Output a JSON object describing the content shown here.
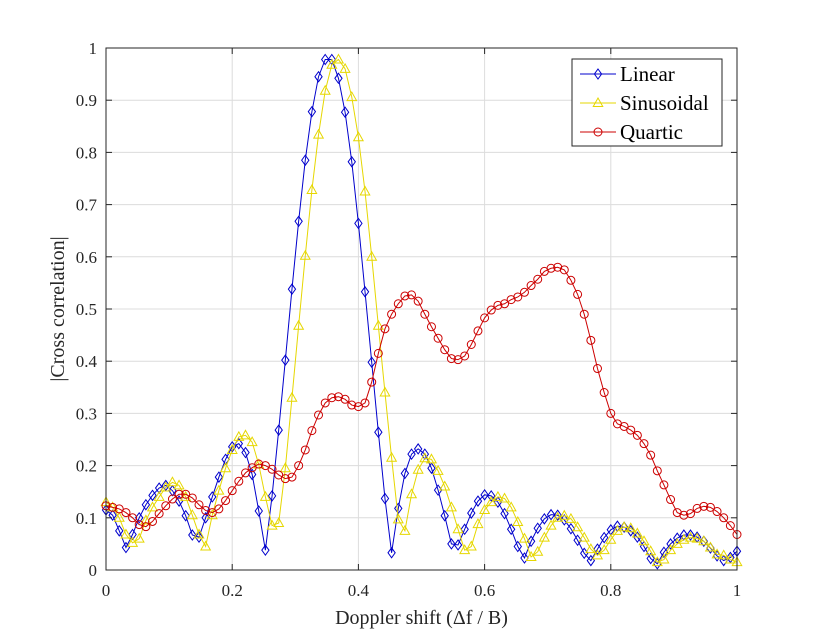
{
  "chart_data": {
    "type": "line",
    "xlabel": "Doppler shift (Δf / B)",
    "ylabel": "|Cross correlation|",
    "xlim": [
      0,
      1
    ],
    "ylim": [
      0,
      1
    ],
    "x_ticks": [
      "0",
      "0.2",
      "0.4",
      "0.6",
      "0.8",
      "1"
    ],
    "y_ticks": [
      "0",
      "0.1",
      "0.2",
      "0.3",
      "0.4",
      "0.5",
      "0.6",
      "0.7",
      "0.8",
      "0.9",
      "1"
    ],
    "grid": true,
    "legend_position": "top-right",
    "series": [
      {
        "name": "Linear",
        "color": "#0000CC",
        "marker": "diamond",
        "points": [
          [
            0.0,
            0.115
          ],
          [
            0.0105,
            0.105
          ],
          [
            0.021,
            0.075
          ],
          [
            0.0316,
            0.043
          ],
          [
            0.0421,
            0.068
          ],
          [
            0.0526,
            0.1
          ],
          [
            0.0632,
            0.125
          ],
          [
            0.0737,
            0.143
          ],
          [
            0.0842,
            0.157
          ],
          [
            0.0947,
            0.162
          ],
          [
            0.1053,
            0.152
          ],
          [
            0.1158,
            0.132
          ],
          [
            0.1263,
            0.104
          ],
          [
            0.1368,
            0.067
          ],
          [
            0.1474,
            0.063
          ],
          [
            0.1579,
            0.1
          ],
          [
            0.1684,
            0.14
          ],
          [
            0.1789,
            0.178
          ],
          [
            0.1895,
            0.212
          ],
          [
            0.2,
            0.236
          ],
          [
            0.2105,
            0.242
          ],
          [
            0.2211,
            0.225
          ],
          [
            0.2316,
            0.183
          ],
          [
            0.2421,
            0.113
          ],
          [
            0.2526,
            0.038
          ],
          [
            0.2632,
            0.142
          ],
          [
            0.2737,
            0.268
          ],
          [
            0.2842,
            0.402
          ],
          [
            0.2947,
            0.538
          ],
          [
            0.3053,
            0.668
          ],
          [
            0.3158,
            0.785
          ],
          [
            0.3263,
            0.878
          ],
          [
            0.3368,
            0.945
          ],
          [
            0.3474,
            0.978
          ],
          [
            0.3579,
            0.978
          ],
          [
            0.3684,
            0.942
          ],
          [
            0.3789,
            0.877
          ],
          [
            0.3895,
            0.782
          ],
          [
            0.4,
            0.664
          ],
          [
            0.4105,
            0.533
          ],
          [
            0.4211,
            0.398
          ],
          [
            0.4316,
            0.264
          ],
          [
            0.4421,
            0.137
          ],
          [
            0.4526,
            0.033
          ],
          [
            0.4632,
            0.118
          ],
          [
            0.4737,
            0.185
          ],
          [
            0.4842,
            0.222
          ],
          [
            0.4947,
            0.232
          ],
          [
            0.5053,
            0.222
          ],
          [
            0.5158,
            0.195
          ],
          [
            0.5263,
            0.153
          ],
          [
            0.5368,
            0.104
          ],
          [
            0.5474,
            0.05
          ],
          [
            0.5579,
            0.048
          ],
          [
            0.5684,
            0.078
          ],
          [
            0.5789,
            0.109
          ],
          [
            0.5895,
            0.132
          ],
          [
            0.6,
            0.144
          ],
          [
            0.6105,
            0.142
          ],
          [
            0.6211,
            0.13
          ],
          [
            0.6316,
            0.108
          ],
          [
            0.6421,
            0.078
          ],
          [
            0.6526,
            0.045
          ],
          [
            0.6632,
            0.023
          ],
          [
            0.6737,
            0.055
          ],
          [
            0.6842,
            0.08
          ],
          [
            0.6947,
            0.098
          ],
          [
            0.7053,
            0.106
          ],
          [
            0.7158,
            0.105
          ],
          [
            0.7263,
            0.096
          ],
          [
            0.7368,
            0.079
          ],
          [
            0.7474,
            0.057
          ],
          [
            0.7579,
            0.032
          ],
          [
            0.7684,
            0.018
          ],
          [
            0.7789,
            0.04
          ],
          [
            0.7895,
            0.062
          ],
          [
            0.8,
            0.077
          ],
          [
            0.8105,
            0.084
          ],
          [
            0.8211,
            0.082
          ],
          [
            0.8316,
            0.075
          ],
          [
            0.8421,
            0.063
          ],
          [
            0.8526,
            0.045
          ],
          [
            0.8632,
            0.022
          ],
          [
            0.8737,
            0.012
          ],
          [
            0.8842,
            0.034
          ],
          [
            0.8947,
            0.05
          ],
          [
            0.9053,
            0.061
          ],
          [
            0.9158,
            0.067
          ],
          [
            0.9263,
            0.067
          ],
          [
            0.9368,
            0.063
          ],
          [
            0.9474,
            0.055
          ],
          [
            0.9579,
            0.042
          ],
          [
            0.9684,
            0.027
          ],
          [
            0.9789,
            0.018
          ],
          [
            0.9895,
            0.024
          ],
          [
            1.0,
            0.036
          ]
        ]
      },
      {
        "name": "Sinusoidal",
        "color": "#E6D700",
        "marker": "triangle",
        "points": [
          [
            0.0,
            0.13
          ],
          [
            0.0105,
            0.12
          ],
          [
            0.021,
            0.1
          ],
          [
            0.0316,
            0.068
          ],
          [
            0.0421,
            0.052
          ],
          [
            0.0526,
            0.06
          ],
          [
            0.0632,
            0.095
          ],
          [
            0.0737,
            0.12
          ],
          [
            0.0842,
            0.14
          ],
          [
            0.0947,
            0.158
          ],
          [
            0.1053,
            0.168
          ],
          [
            0.1158,
            0.162
          ],
          [
            0.1263,
            0.14
          ],
          [
            0.1368,
            0.105
          ],
          [
            0.1474,
            0.068
          ],
          [
            0.1579,
            0.045
          ],
          [
            0.1684,
            0.105
          ],
          [
            0.1789,
            0.152
          ],
          [
            0.1895,
            0.195
          ],
          [
            0.2,
            0.23
          ],
          [
            0.2105,
            0.255
          ],
          [
            0.2211,
            0.258
          ],
          [
            0.2316,
            0.245
          ],
          [
            0.2421,
            0.202
          ],
          [
            0.2526,
            0.14
          ],
          [
            0.2632,
            0.085
          ],
          [
            0.2737,
            0.09
          ],
          [
            0.2842,
            0.195
          ],
          [
            0.2947,
            0.33
          ],
          [
            0.3053,
            0.468
          ],
          [
            0.3158,
            0.602
          ],
          [
            0.3263,
            0.728
          ],
          [
            0.3368,
            0.834
          ],
          [
            0.3474,
            0.918
          ],
          [
            0.3579,
            0.968
          ],
          [
            0.3684,
            0.978
          ],
          [
            0.3789,
            0.96
          ],
          [
            0.3895,
            0.906
          ],
          [
            0.4,
            0.829
          ],
          [
            0.4105,
            0.725
          ],
          [
            0.4211,
            0.6
          ],
          [
            0.4316,
            0.468
          ],
          [
            0.4421,
            0.34
          ],
          [
            0.4526,
            0.215
          ],
          [
            0.4632,
            0.097
          ],
          [
            0.4737,
            0.075
          ],
          [
            0.4842,
            0.145
          ],
          [
            0.4947,
            0.192
          ],
          [
            0.5053,
            0.214
          ],
          [
            0.5158,
            0.212
          ],
          [
            0.5263,
            0.19
          ],
          [
            0.5368,
            0.16
          ],
          [
            0.5474,
            0.12
          ],
          [
            0.5579,
            0.078
          ],
          [
            0.5684,
            0.038
          ],
          [
            0.5789,
            0.045
          ],
          [
            0.5895,
            0.088
          ],
          [
            0.6,
            0.115
          ],
          [
            0.6105,
            0.13
          ],
          [
            0.6211,
            0.14
          ],
          [
            0.6316,
            0.137
          ],
          [
            0.6421,
            0.12
          ],
          [
            0.6526,
            0.092
          ],
          [
            0.6632,
            0.06
          ],
          [
            0.6737,
            0.025
          ],
          [
            0.6842,
            0.035
          ],
          [
            0.6947,
            0.062
          ],
          [
            0.7053,
            0.085
          ],
          [
            0.7158,
            0.1
          ],
          [
            0.7263,
            0.104
          ],
          [
            0.7368,
            0.098
          ],
          [
            0.7474,
            0.082
          ],
          [
            0.7579,
            0.062
          ],
          [
            0.7684,
            0.04
          ],
          [
            0.7789,
            0.028
          ],
          [
            0.7895,
            0.038
          ],
          [
            0.8,
            0.058
          ],
          [
            0.8105,
            0.075
          ],
          [
            0.8211,
            0.082
          ],
          [
            0.8316,
            0.08
          ],
          [
            0.8421,
            0.07
          ],
          [
            0.8526,
            0.055
          ],
          [
            0.8632,
            0.036
          ],
          [
            0.8737,
            0.015
          ],
          [
            0.8842,
            0.02
          ],
          [
            0.8947,
            0.038
          ],
          [
            0.9053,
            0.05
          ],
          [
            0.9158,
            0.058
          ],
          [
            0.9263,
            0.062
          ],
          [
            0.9368,
            0.06
          ],
          [
            0.9474,
            0.055
          ],
          [
            0.9579,
            0.043
          ],
          [
            0.9684,
            0.03
          ],
          [
            0.9789,
            0.028
          ],
          [
            0.9895,
            0.02
          ],
          [
            1.0,
            0.015
          ]
        ]
      },
      {
        "name": "Quartic",
        "color": "#CC0000",
        "marker": "circle",
        "points": [
          [
            0.0,
            0.123
          ],
          [
            0.0105,
            0.12
          ],
          [
            0.021,
            0.117
          ],
          [
            0.0316,
            0.11
          ],
          [
            0.0421,
            0.1
          ],
          [
            0.0526,
            0.087
          ],
          [
            0.0632,
            0.083
          ],
          [
            0.0737,
            0.093
          ],
          [
            0.0842,
            0.108
          ],
          [
            0.0947,
            0.123
          ],
          [
            0.1053,
            0.136
          ],
          [
            0.1158,
            0.145
          ],
          [
            0.1263,
            0.145
          ],
          [
            0.1368,
            0.138
          ],
          [
            0.1474,
            0.125
          ],
          [
            0.1579,
            0.114
          ],
          [
            0.1684,
            0.11
          ],
          [
            0.1789,
            0.117
          ],
          [
            0.1895,
            0.133
          ],
          [
            0.2,
            0.152
          ],
          [
            0.2105,
            0.17
          ],
          [
            0.2211,
            0.186
          ],
          [
            0.2316,
            0.196
          ],
          [
            0.2421,
            0.203
          ],
          [
            0.2526,
            0.2
          ],
          [
            0.2632,
            0.193
          ],
          [
            0.2737,
            0.182
          ],
          [
            0.2842,
            0.175
          ],
          [
            0.2947,
            0.178
          ],
          [
            0.3053,
            0.2
          ],
          [
            0.3158,
            0.23
          ],
          [
            0.3263,
            0.267
          ],
          [
            0.3368,
            0.297
          ],
          [
            0.3474,
            0.32
          ],
          [
            0.3579,
            0.33
          ],
          [
            0.3684,
            0.332
          ],
          [
            0.3789,
            0.327
          ],
          [
            0.3895,
            0.316
          ],
          [
            0.4,
            0.313
          ],
          [
            0.4105,
            0.32
          ],
          [
            0.4211,
            0.36
          ],
          [
            0.4316,
            0.415
          ],
          [
            0.4421,
            0.462
          ],
          [
            0.4526,
            0.49
          ],
          [
            0.4632,
            0.51
          ],
          [
            0.4737,
            0.525
          ],
          [
            0.4842,
            0.527
          ],
          [
            0.4947,
            0.515
          ],
          [
            0.5053,
            0.49
          ],
          [
            0.5158,
            0.466
          ],
          [
            0.5263,
            0.444
          ],
          [
            0.5368,
            0.422
          ],
          [
            0.5474,
            0.405
          ],
          [
            0.5579,
            0.403
          ],
          [
            0.5684,
            0.41
          ],
          [
            0.5789,
            0.432
          ],
          [
            0.5895,
            0.458
          ],
          [
            0.6,
            0.483
          ],
          [
            0.6105,
            0.498
          ],
          [
            0.6211,
            0.507
          ],
          [
            0.6316,
            0.51
          ],
          [
            0.6421,
            0.518
          ],
          [
            0.6526,
            0.523
          ],
          [
            0.6632,
            0.532
          ],
          [
            0.6737,
            0.545
          ],
          [
            0.6842,
            0.557
          ],
          [
            0.6947,
            0.572
          ],
          [
            0.7053,
            0.578
          ],
          [
            0.7158,
            0.58
          ],
          [
            0.7263,
            0.575
          ],
          [
            0.7368,
            0.555
          ],
          [
            0.7474,
            0.528
          ],
          [
            0.7579,
            0.49
          ],
          [
            0.7684,
            0.44
          ],
          [
            0.7789,
            0.386
          ],
          [
            0.7895,
            0.34
          ],
          [
            0.8,
            0.3
          ],
          [
            0.8105,
            0.28
          ],
          [
            0.8211,
            0.275
          ],
          [
            0.8316,
            0.268
          ],
          [
            0.8421,
            0.258
          ],
          [
            0.8526,
            0.242
          ],
          [
            0.8632,
            0.22
          ],
          [
            0.8737,
            0.19
          ],
          [
            0.8842,
            0.163
          ],
          [
            0.8947,
            0.135
          ],
          [
            0.9053,
            0.11
          ],
          [
            0.9158,
            0.105
          ],
          [
            0.9263,
            0.108
          ],
          [
            0.9368,
            0.118
          ],
          [
            0.9474,
            0.122
          ],
          [
            0.9579,
            0.12
          ],
          [
            0.9684,
            0.112
          ],
          [
            0.9789,
            0.1
          ],
          [
            0.9895,
            0.085
          ],
          [
            1.0,
            0.068
          ]
        ]
      }
    ]
  }
}
